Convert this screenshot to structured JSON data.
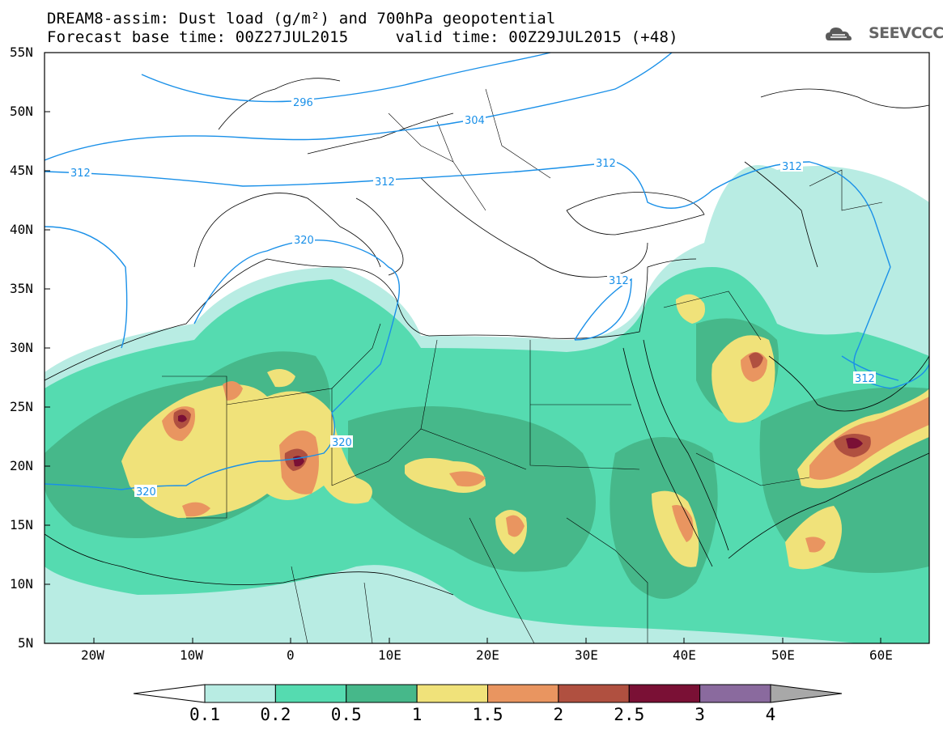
{
  "header": {
    "title_line1": "DREAM8-assim: Dust load (g/m²) and 700hPa geopotential",
    "title_line2": "Forecast base time: 00Z27JUL2015     valid time: 00Z29JUL2015 (+48)",
    "logo_text": "SEEVCCC"
  },
  "map": {
    "lat_labels": [
      "55N",
      "50N",
      "45N",
      "40N",
      "35N",
      "30N",
      "25N",
      "20N",
      "15N",
      "10N",
      "5N"
    ],
    "lon_labels": [
      "20W",
      "10W",
      "0",
      "10E",
      "20E",
      "30E",
      "40E",
      "50E",
      "60E"
    ],
    "contour_labels": [
      "296",
      "304",
      "312",
      "312",
      "312",
      "312",
      "320",
      "320",
      "320",
      "312",
      "312"
    ]
  },
  "colorbar": {
    "levels": [
      "0.1",
      "0.2",
      "0.5",
      "1",
      "1.5",
      "2",
      "2.5",
      "3",
      "4"
    ],
    "colors": [
      "#b8ece3",
      "#55dbb0",
      "#46b88a",
      "#f0e27a",
      "#e99560",
      "#b05040",
      "#7a1035",
      "#8a6a9e"
    ],
    "under_color": "#ffffff",
    "over_color": "#a8a8a8"
  },
  "colors": {
    "contour": "#1a90e8",
    "border": "#000000"
  }
}
